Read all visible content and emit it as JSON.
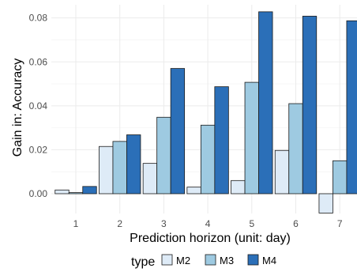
{
  "chart_data": {
    "type": "bar",
    "xlabel": "Prediction horizon (unit: day)",
    "ylabel": "Gain in: Accuracy",
    "categories": [
      "1",
      "2",
      "3",
      "4",
      "5",
      "6",
      "7"
    ],
    "ylim": [
      -0.009,
      0.086
    ],
    "yticks": [
      0.0,
      0.02,
      0.04,
      0.06,
      0.08
    ],
    "yticklabels": [
      "0.00",
      "0.02",
      "0.04",
      "0.06",
      "0.08"
    ],
    "grid": true,
    "legend": {
      "title": "type",
      "position": "bottom"
    },
    "series": [
      {
        "name": "M2",
        "color": "#deebf7",
        "values": [
          0.0017,
          0.0215,
          0.0138,
          0.003,
          0.006,
          0.0197,
          -0.0088
        ]
      },
      {
        "name": "M3",
        "color": "#9ecae1",
        "values": [
          0.0005,
          0.0238,
          0.0348,
          0.0312,
          0.0507,
          0.041,
          0.015
        ]
      },
      {
        "name": "M4",
        "color": "#2b6fb8",
        "values": [
          0.0033,
          0.0268,
          0.057,
          0.0487,
          0.0828,
          0.0808,
          0.0787
        ]
      }
    ]
  }
}
